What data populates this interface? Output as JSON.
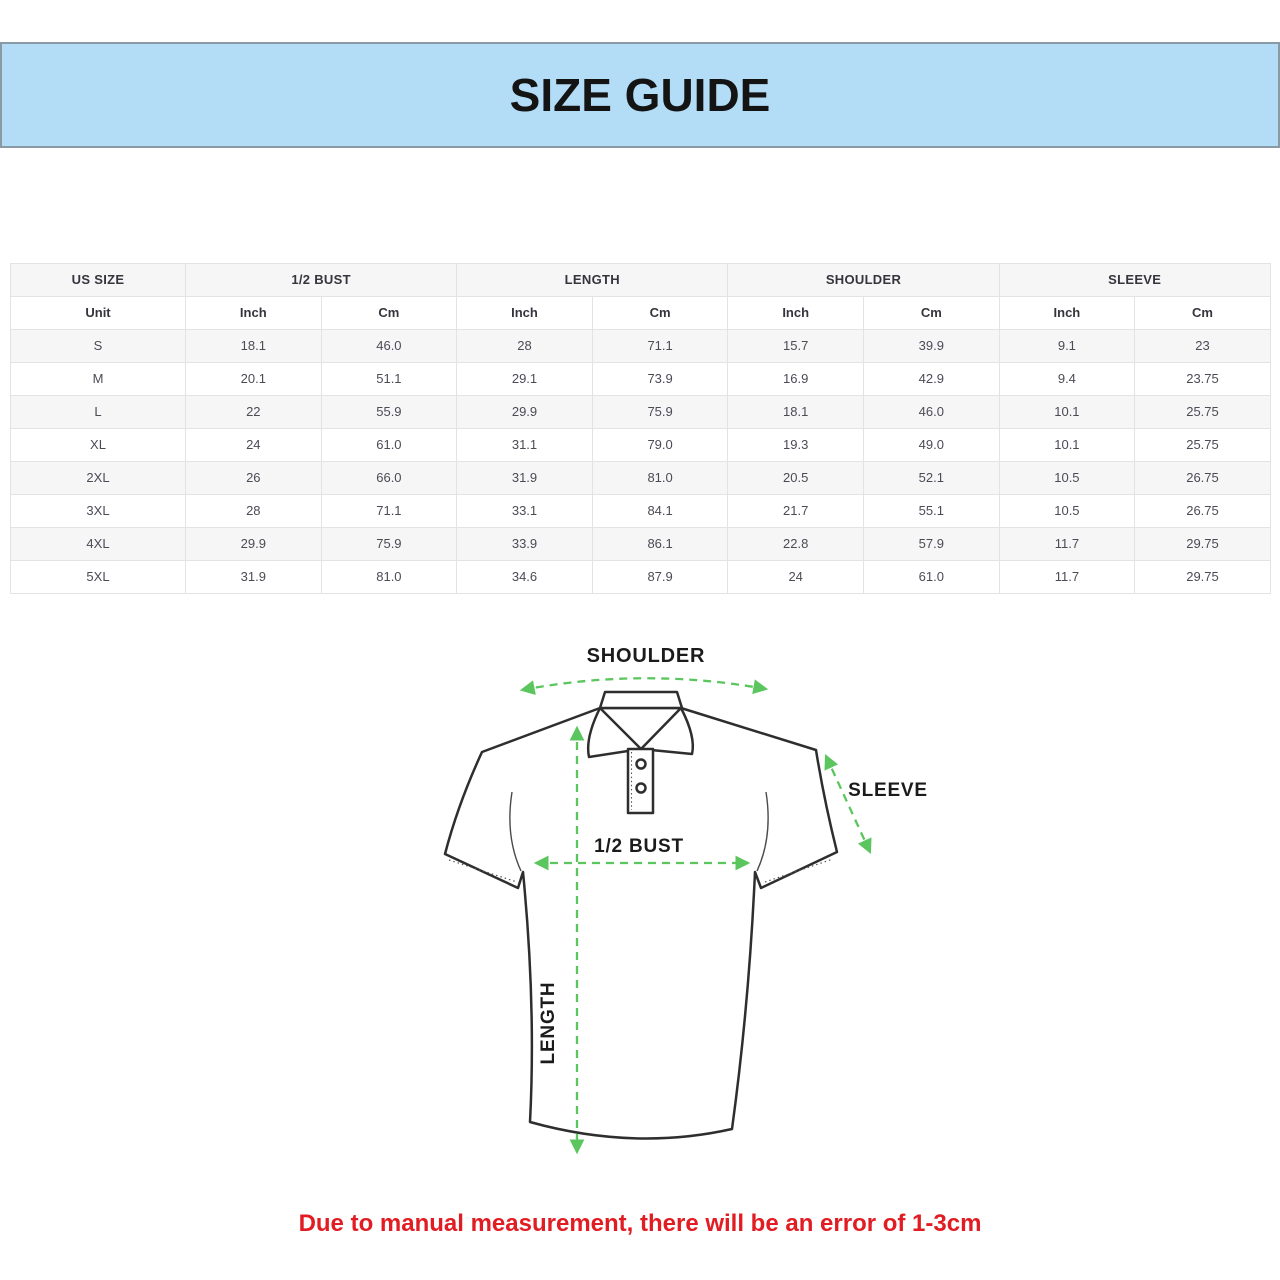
{
  "banner": {
    "title": "SIZE GUIDE",
    "bg": "#b3dcf6"
  },
  "table": {
    "header_groups": [
      {
        "label": "US SIZE"
      },
      {
        "label": "1/2 BUST"
      },
      {
        "label": "LENGTH"
      },
      {
        "label": "SHOULDER"
      },
      {
        "label": "SLEEVE"
      }
    ],
    "unit_row": [
      "Unit",
      "Inch",
      "Cm",
      "Inch",
      "Cm",
      "Inch",
      "Cm",
      "Inch",
      "Cm"
    ],
    "rows": [
      {
        "size": "S",
        "values": [
          "18.1",
          "46.0",
          "28",
          "71.1",
          "15.7",
          "39.9",
          "9.1",
          "23"
        ]
      },
      {
        "size": "M",
        "values": [
          "20.1",
          "51.1",
          "29.1",
          "73.9",
          "16.9",
          "42.9",
          "9.4",
          "23.75"
        ]
      },
      {
        "size": "L",
        "values": [
          "22",
          "55.9",
          "29.9",
          "75.9",
          "18.1",
          "46.0",
          "10.1",
          "25.75"
        ]
      },
      {
        "size": "XL",
        "values": [
          "24",
          "61.0",
          "31.1",
          "79.0",
          "19.3",
          "49.0",
          "10.1",
          "25.75"
        ]
      },
      {
        "size": "2XL",
        "values": [
          "26",
          "66.0",
          "31.9",
          "81.0",
          "20.5",
          "52.1",
          "10.5",
          "26.75"
        ]
      },
      {
        "size": "3XL",
        "values": [
          "28",
          "71.1",
          "33.1",
          "84.1",
          "21.7",
          "55.1",
          "10.5",
          "26.75"
        ]
      },
      {
        "size": "4XL",
        "values": [
          "29.9",
          "75.9",
          "33.9",
          "86.1",
          "22.8",
          "57.9",
          "11.7",
          "29.75"
        ]
      },
      {
        "size": "5XL",
        "values": [
          "31.9",
          "81.0",
          "34.6",
          "87.9",
          "24",
          "61.0",
          "11.7",
          "29.75"
        ]
      }
    ]
  },
  "diagram": {
    "arrow_color": "#5bc55e",
    "labels": {
      "shoulder": "SHOULDER",
      "sleeve": "SLEEVE",
      "bust": "1/2 BUST",
      "length": "LENGTH"
    }
  },
  "note": {
    "text": "Due to manual measurement, there will be an error of 1-3cm",
    "color": "#e11d23"
  }
}
